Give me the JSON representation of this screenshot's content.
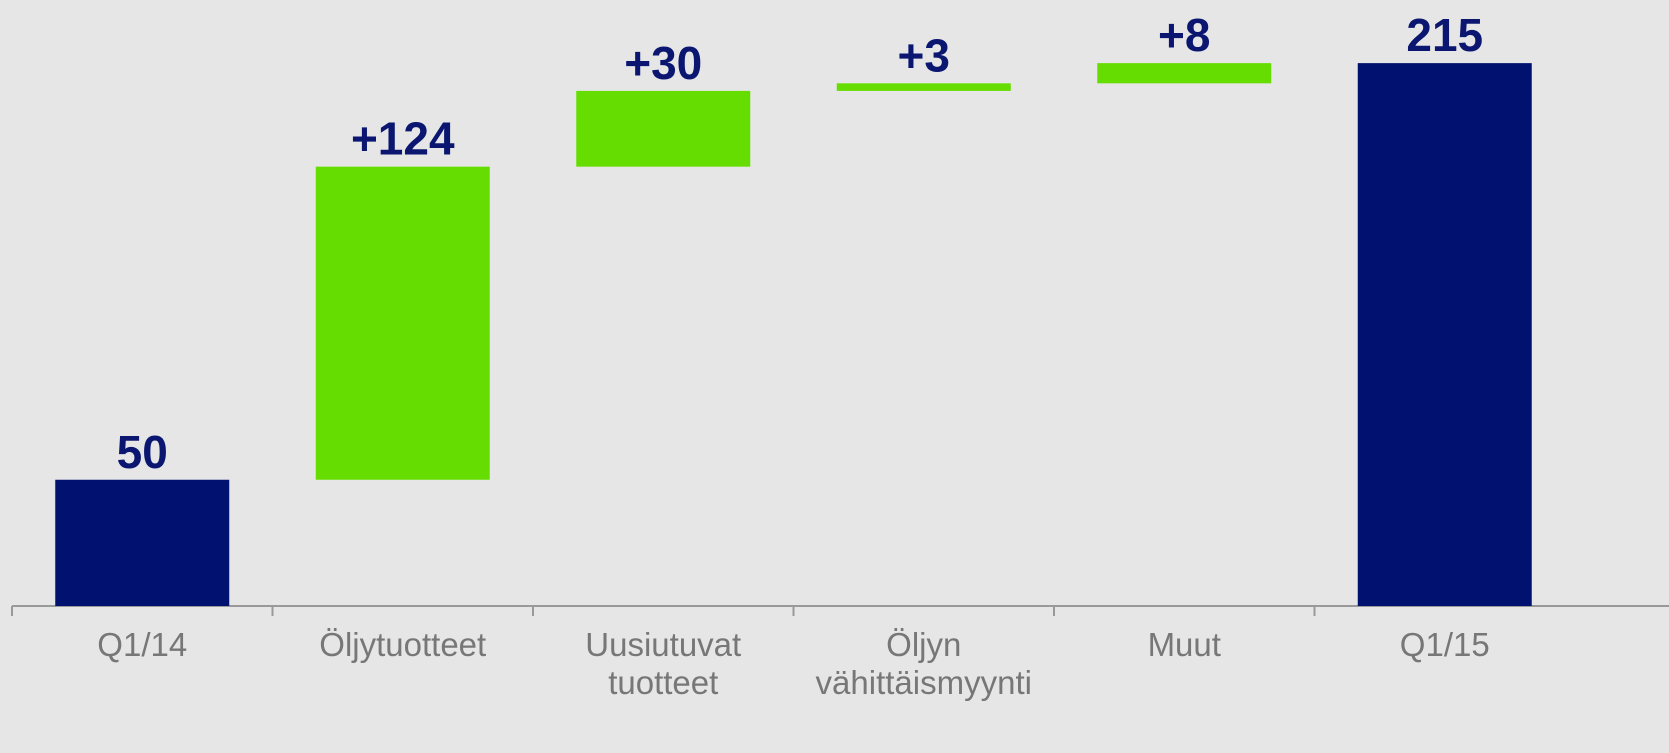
{
  "chart_data": {
    "type": "waterfall",
    "categories": [
      "Q1/14",
      "Öljytuotteet",
      "Uusiutuvat tuotteet",
      "Öljyn vähittäismyynti",
      "Muut",
      "Q1/15"
    ],
    "values": [
      50,
      124,
      30,
      3,
      8,
      215
    ],
    "value_labels": [
      "50",
      "+124",
      "+30",
      "+3",
      "+8",
      "215"
    ],
    "measure": [
      "total",
      "relative",
      "relative",
      "relative",
      "relative",
      "total"
    ],
    "total_color": "#001170",
    "increase_color": "#66dd00",
    "ylim": [
      0,
      240
    ]
  }
}
